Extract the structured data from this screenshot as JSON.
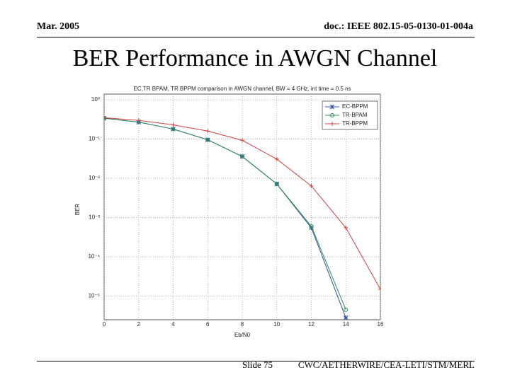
{
  "header": {
    "date": "Mar. 2005",
    "doc": "doc.: IEEE 802.15-05-0130-01-004a"
  },
  "title": "BER Performance in AWGN Channel",
  "footer": {
    "slide": "Slide 75",
    "source": "CWC/AETHERWIRE/CEA-LETI/STM/MERL"
  },
  "chart_data": {
    "type": "line",
    "title": "EC,TR BPAM, TR BPPM comparison in AWGN channel, BW = 4 GHz, int time = 0.5 ns",
    "x_label": "Eb/N0",
    "y_label": "BER",
    "log_y": true,
    "grid": true,
    "legend": "upper right",
    "xlim": [
      0,
      16
    ],
    "xticks": [
      0,
      2,
      4,
      6,
      8,
      10,
      12,
      14,
      16
    ],
    "ylim": [
      2.5e-06,
      1.4
    ],
    "yticks": [
      {
        "value": 1,
        "label": "10⁰"
      },
      {
        "value": 0.1,
        "label": "10⁻¹"
      },
      {
        "value": 0.01,
        "label": "10⁻²"
      },
      {
        "value": 0.001,
        "label": "10⁻³"
      },
      {
        "value": 0.0001,
        "label": "10⁻⁴"
      },
      {
        "value": 1e-05,
        "label": "10⁻⁵"
      }
    ],
    "x": [
      0,
      2,
      4,
      6,
      8,
      10,
      12,
      14,
      16
    ],
    "series": [
      {
        "name": "EC-BPPM",
        "color": "#3050a0",
        "marker": "star",
        "values": [
          0.34,
          0.27,
          0.18,
          0.096,
          0.036,
          0.0072,
          0.00055,
          2.8e-06,
          null
        ]
      },
      {
        "name": "TR-BPAM",
        "color": "#2e8b57",
        "marker": "circle",
        "values": [
          0.34,
          0.27,
          0.18,
          0.096,
          0.036,
          0.0072,
          0.0006,
          4.5e-06,
          null
        ]
      },
      {
        "name": "TR-BPPM",
        "color": "#d04040",
        "marker": "plus",
        "values": [
          0.35,
          0.3,
          0.23,
          0.16,
          0.093,
          0.031,
          0.0064,
          0.00055,
          1.5e-05
        ]
      }
    ]
  }
}
